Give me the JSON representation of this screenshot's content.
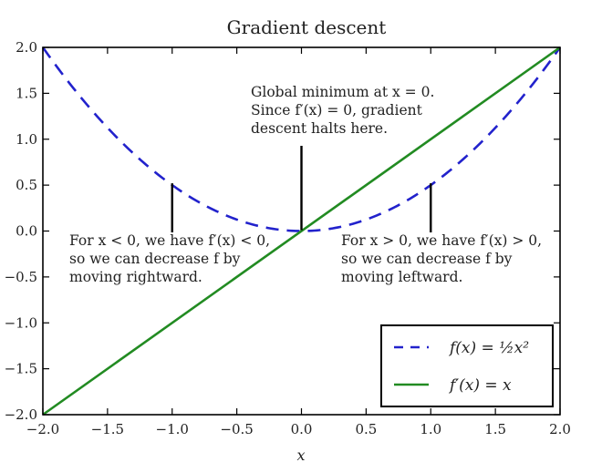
{
  "chart_data": {
    "type": "line",
    "title": "Gradient descent",
    "xlabel": "x",
    "ylabel": "",
    "xlim": [
      -2.0,
      2.0
    ],
    "ylim": [
      -2.0,
      2.0
    ],
    "x_ticks": [
      "−2.0",
      "−1.5",
      "−1.0",
      "−0.5",
      "0.0",
      "0.5",
      "1.0",
      "1.5",
      "2.0"
    ],
    "x_tick_values": [
      -2.0,
      -1.5,
      -1.0,
      -0.5,
      0.0,
      0.5,
      1.0,
      1.5,
      2.0
    ],
    "y_ticks": [
      "−2.0",
      "−1.5",
      "−1.0",
      "−0.5",
      "0.0",
      "0.5",
      "1.0",
      "1.5",
      "2.0"
    ],
    "y_tick_values": [
      -2.0,
      -1.5,
      -1.0,
      -0.5,
      0.0,
      0.5,
      1.0,
      1.5,
      2.0
    ],
    "series": [
      {
        "name": "f(x) = ½x²",
        "style": "dashed",
        "color": "#2222cc",
        "x": [
          -2.0,
          -1.75,
          -1.5,
          -1.25,
          -1.0,
          -0.75,
          -0.5,
          -0.25,
          0.0,
          0.25,
          0.5,
          0.75,
          1.0,
          1.25,
          1.5,
          1.75,
          2.0
        ],
        "y": [
          2.0,
          1.53125,
          1.125,
          0.78125,
          0.5,
          0.28125,
          0.125,
          0.03125,
          0.0,
          0.03125,
          0.125,
          0.28125,
          0.5,
          0.78125,
          1.125,
          1.53125,
          2.0
        ]
      },
      {
        "name": "f′(x) = x",
        "style": "solid",
        "color": "#228b22",
        "x": [
          -2.0,
          2.0
        ],
        "y": [
          -2.0,
          2.0
        ]
      }
    ],
    "annotations": [
      {
        "lines": [
          "Global minimum at x = 0.",
          "Since f′(x) = 0, gradient",
          "descent halts here."
        ],
        "point": [
          0.0,
          0.0
        ]
      },
      {
        "lines": [
          "For x < 0, we have f′(x) < 0,",
          "so we can decrease f by",
          "moving rightward."
        ],
        "point": [
          -1.0,
          0.5
        ]
      },
      {
        "lines": [
          "For x > 0, we have f′(x) > 0,",
          "so we can decrease f by",
          "moving leftward."
        ],
        "point": [
          1.0,
          0.5
        ]
      }
    ],
    "legend": {
      "placement": "lower-right",
      "entries": [
        "f(x) = ½x²",
        "f′(x) = x"
      ]
    },
    "grid": false
  }
}
